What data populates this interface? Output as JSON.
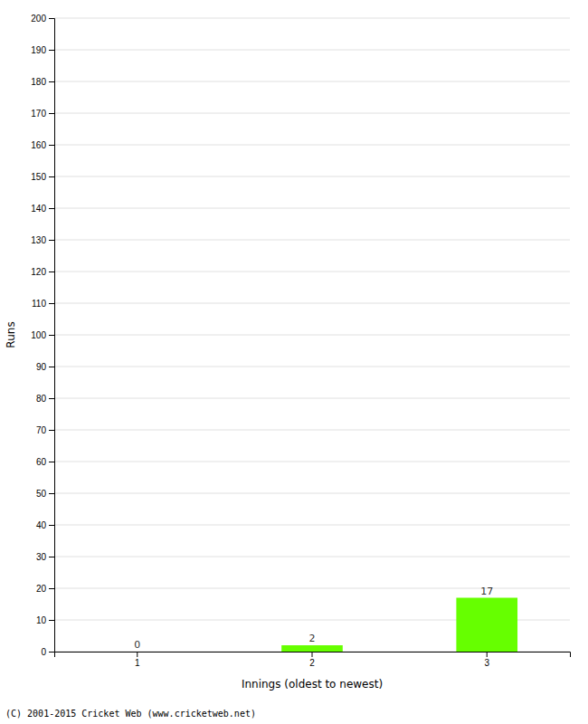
{
  "chart_data": {
    "type": "bar",
    "categories": [
      "1",
      "2",
      "3"
    ],
    "values": [
      0,
      2,
      17
    ],
    "color": "#66ff00",
    "xlabel": "Innings (oldest to newest)",
    "ylabel": "Runs",
    "ylim": [
      0,
      200
    ],
    "yticks": [
      0,
      10,
      20,
      30,
      40,
      50,
      60,
      70,
      80,
      90,
      100,
      110,
      120,
      130,
      140,
      150,
      160,
      170,
      180,
      190,
      200
    ],
    "grid": true,
    "data_labels": true,
    "annotations": [
      "(C) 2001-2015 Cricket Web (www.cricketweb.net)"
    ]
  }
}
